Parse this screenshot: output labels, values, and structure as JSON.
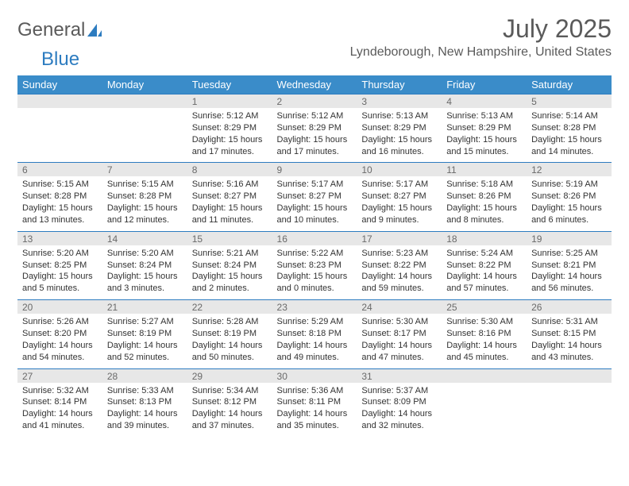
{
  "brand": {
    "part1": "General",
    "part2": "Blue"
  },
  "title": "July 2025",
  "location": "Lyndeborough, New Hampshire, United States",
  "colors": {
    "header_bg": "#3a8cc9",
    "header_text": "#ffffff",
    "daynum_bg": "#e7e7e7",
    "daynum_text": "#6a6a6a",
    "border": "#2d7cc0",
    "body_text": "#333333",
    "title_text": "#5a5a5a"
  },
  "day_labels": [
    "Sunday",
    "Monday",
    "Tuesday",
    "Wednesday",
    "Thursday",
    "Friday",
    "Saturday"
  ],
  "weeks": [
    [
      null,
      null,
      {
        "n": "1",
        "sr": "5:12 AM",
        "ss": "8:29 PM",
        "dl": "15 hours and 17 minutes."
      },
      {
        "n": "2",
        "sr": "5:12 AM",
        "ss": "8:29 PM",
        "dl": "15 hours and 17 minutes."
      },
      {
        "n": "3",
        "sr": "5:13 AM",
        "ss": "8:29 PM",
        "dl": "15 hours and 16 minutes."
      },
      {
        "n": "4",
        "sr": "5:13 AM",
        "ss": "8:29 PM",
        "dl": "15 hours and 15 minutes."
      },
      {
        "n": "5",
        "sr": "5:14 AM",
        "ss": "8:28 PM",
        "dl": "15 hours and 14 minutes."
      }
    ],
    [
      {
        "n": "6",
        "sr": "5:15 AM",
        "ss": "8:28 PM",
        "dl": "15 hours and 13 minutes."
      },
      {
        "n": "7",
        "sr": "5:15 AM",
        "ss": "8:28 PM",
        "dl": "15 hours and 12 minutes."
      },
      {
        "n": "8",
        "sr": "5:16 AM",
        "ss": "8:27 PM",
        "dl": "15 hours and 11 minutes."
      },
      {
        "n": "9",
        "sr": "5:17 AM",
        "ss": "8:27 PM",
        "dl": "15 hours and 10 minutes."
      },
      {
        "n": "10",
        "sr": "5:17 AM",
        "ss": "8:27 PM",
        "dl": "15 hours and 9 minutes."
      },
      {
        "n": "11",
        "sr": "5:18 AM",
        "ss": "8:26 PM",
        "dl": "15 hours and 8 minutes."
      },
      {
        "n": "12",
        "sr": "5:19 AM",
        "ss": "8:26 PM",
        "dl": "15 hours and 6 minutes."
      }
    ],
    [
      {
        "n": "13",
        "sr": "5:20 AM",
        "ss": "8:25 PM",
        "dl": "15 hours and 5 minutes."
      },
      {
        "n": "14",
        "sr": "5:20 AM",
        "ss": "8:24 PM",
        "dl": "15 hours and 3 minutes."
      },
      {
        "n": "15",
        "sr": "5:21 AM",
        "ss": "8:24 PM",
        "dl": "15 hours and 2 minutes."
      },
      {
        "n": "16",
        "sr": "5:22 AM",
        "ss": "8:23 PM",
        "dl": "15 hours and 0 minutes."
      },
      {
        "n": "17",
        "sr": "5:23 AM",
        "ss": "8:22 PM",
        "dl": "14 hours and 59 minutes."
      },
      {
        "n": "18",
        "sr": "5:24 AM",
        "ss": "8:22 PM",
        "dl": "14 hours and 57 minutes."
      },
      {
        "n": "19",
        "sr": "5:25 AM",
        "ss": "8:21 PM",
        "dl": "14 hours and 56 minutes."
      }
    ],
    [
      {
        "n": "20",
        "sr": "5:26 AM",
        "ss": "8:20 PM",
        "dl": "14 hours and 54 minutes."
      },
      {
        "n": "21",
        "sr": "5:27 AM",
        "ss": "8:19 PM",
        "dl": "14 hours and 52 minutes."
      },
      {
        "n": "22",
        "sr": "5:28 AM",
        "ss": "8:19 PM",
        "dl": "14 hours and 50 minutes."
      },
      {
        "n": "23",
        "sr": "5:29 AM",
        "ss": "8:18 PM",
        "dl": "14 hours and 49 minutes."
      },
      {
        "n": "24",
        "sr": "5:30 AM",
        "ss": "8:17 PM",
        "dl": "14 hours and 47 minutes."
      },
      {
        "n": "25",
        "sr": "5:30 AM",
        "ss": "8:16 PM",
        "dl": "14 hours and 45 minutes."
      },
      {
        "n": "26",
        "sr": "5:31 AM",
        "ss": "8:15 PM",
        "dl": "14 hours and 43 minutes."
      }
    ],
    [
      {
        "n": "27",
        "sr": "5:32 AM",
        "ss": "8:14 PM",
        "dl": "14 hours and 41 minutes."
      },
      {
        "n": "28",
        "sr": "5:33 AM",
        "ss": "8:13 PM",
        "dl": "14 hours and 39 minutes."
      },
      {
        "n": "29",
        "sr": "5:34 AM",
        "ss": "8:12 PM",
        "dl": "14 hours and 37 minutes."
      },
      {
        "n": "30",
        "sr": "5:36 AM",
        "ss": "8:11 PM",
        "dl": "14 hours and 35 minutes."
      },
      {
        "n": "31",
        "sr": "5:37 AM",
        "ss": "8:09 PM",
        "dl": "14 hours and 32 minutes."
      },
      null,
      null
    ]
  ],
  "labels": {
    "sunrise": "Sunrise: ",
    "sunset": "Sunset: ",
    "daylight": "Daylight: "
  }
}
